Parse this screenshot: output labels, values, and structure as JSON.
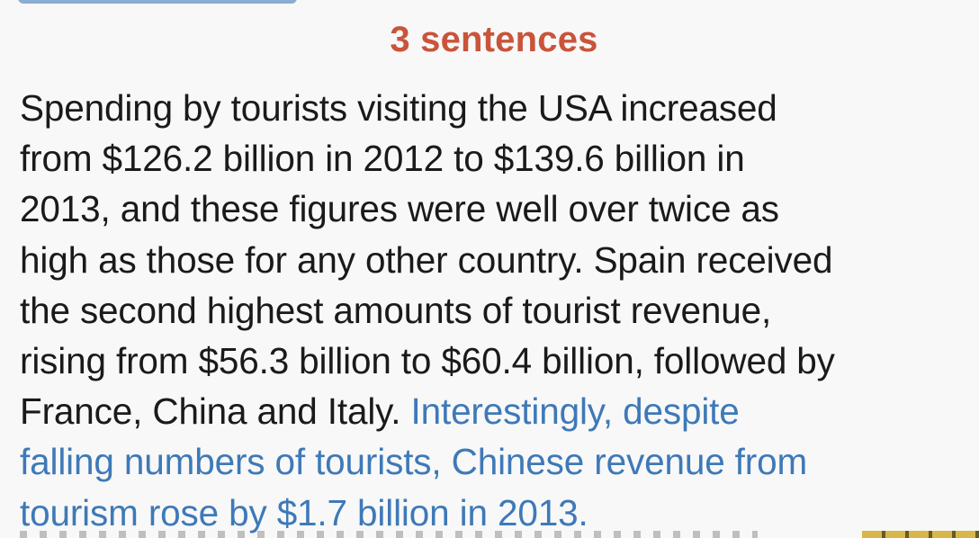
{
  "heading": "3 sentences",
  "colors": {
    "heading": "#c9543a",
    "body": "#1a1a1a",
    "highlight": "#3e79b8",
    "background": "#f8f8f8"
  },
  "paragraph": {
    "lines": [
      "Spending by tourists visiting the USA increased",
      "from $126.2 billion in 2012 to $139.6 billion in",
      "2013, and these figures were well over twice as",
      "high as those for any other country. Spain received",
      "the second highest amounts of tourist revenue,",
      "rising from $56.3 billion to $60.4 billion, followed by"
    ],
    "line7_normal": "France, China and Italy.",
    "line7_highlight": "Interestingly, despite",
    "highlight_lines": [
      "falling numbers of tourists, Chinese revenue from",
      "tourism rose by $1.7 billion in 2013."
    ]
  }
}
